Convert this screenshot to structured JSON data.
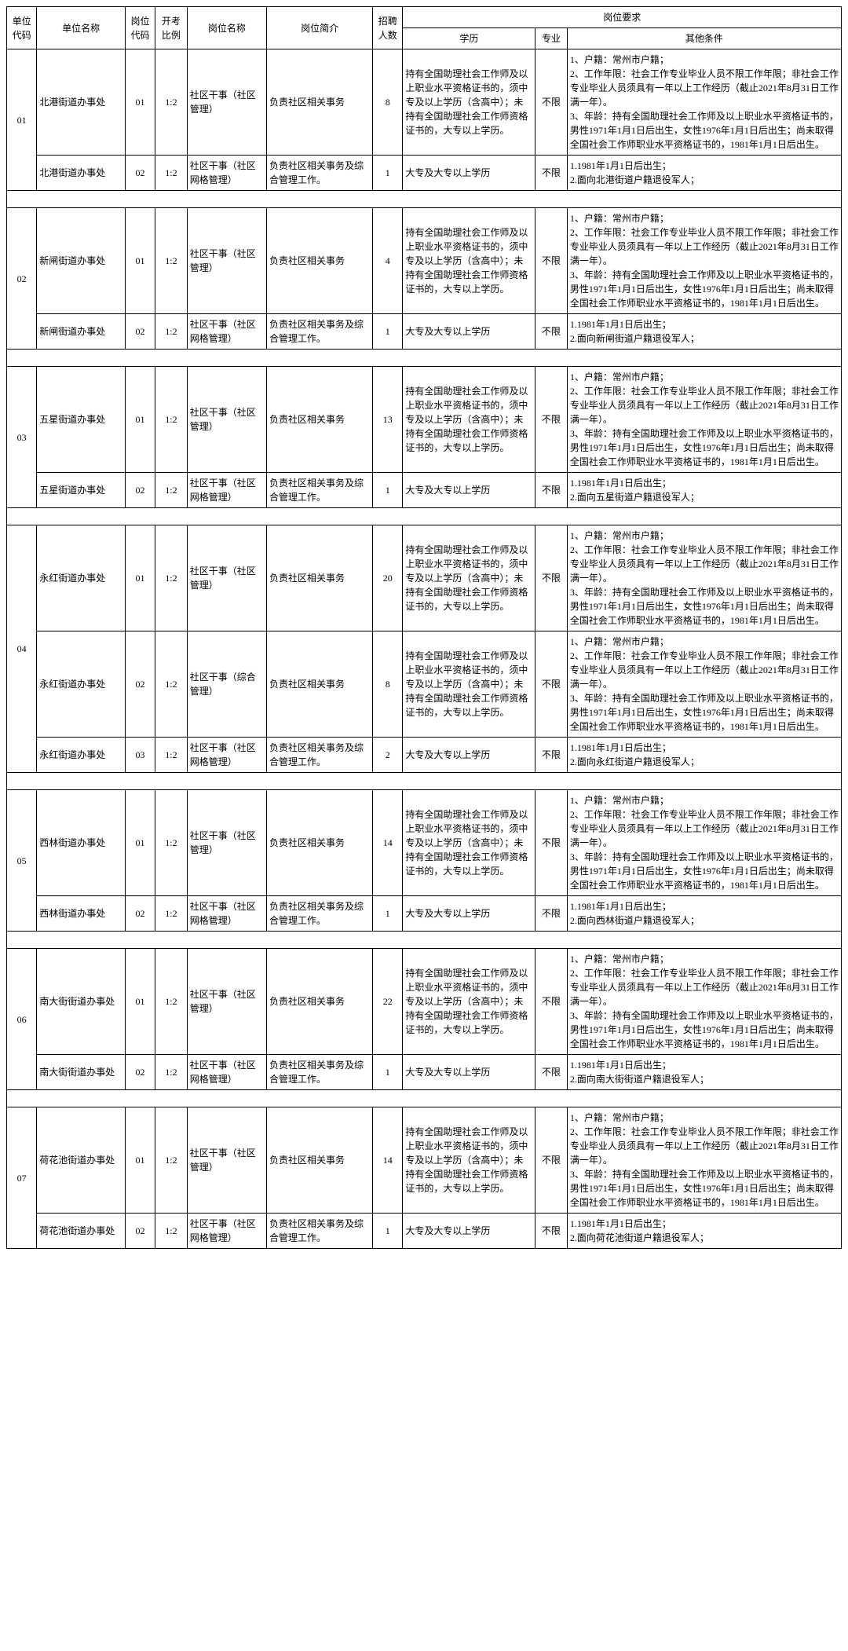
{
  "headers": {
    "unit_code": "单位代码",
    "unit_name": "单位名称",
    "post_code": "岗位代码",
    "ratio": "开考比例",
    "post_name": "岗位名称",
    "post_intro": "岗位简介",
    "count": "招聘人数",
    "req_group": "岗位要求",
    "edu": "学历",
    "major": "专业",
    "other": "其他条件"
  },
  "edu_long": "持有全国助理社会工作师及以上职业水平资格证书的，须中专及以上学历（含高中）；未持有全国助理社会工作师资格证书的，大专以上学历。",
  "edu_short": "大专及大专以上学历",
  "major_val": "不限",
  "other_long": "1、户籍：常州市户籍；\n2、工作年限：社会工作专业毕业人员不限工作年限；非社会工作专业毕业人员须具有一年以上工作经历（截止2021年8月31日工作满一年）。\n3、年龄：持有全国助理社会工作师及以上职业水平资格证书的，男性1971年1月1日后出生，女性1976年1月1日后出生；尚未取得全国社会工作师职业水平资格证书的，1981年1月1日后出生。",
  "groups": [
    {
      "unit_code": "01",
      "rows": [
        {
          "unit_name": "北港街道办事处",
          "post_code": "01",
          "ratio": "1:2",
          "post_name": "社区干事（社区管理）",
          "post_intro": "负责社区相关事务",
          "count": "8",
          "edu_key": "long",
          "other": "long"
        },
        {
          "unit_name": "北港街道办事处",
          "post_code": "02",
          "ratio": "1:2",
          "post_name": "社区干事（社区网格管理）",
          "post_intro": "负责社区相关事务及综合管理工作。",
          "count": "1",
          "edu_key": "short",
          "other": "1.1981年1月1日后出生；\n2.面向北港街道户籍退役军人；"
        }
      ]
    },
    {
      "unit_code": "02",
      "rows": [
        {
          "unit_name": "新闸街道办事处",
          "post_code": "01",
          "ratio": "1:2",
          "post_name": "社区干事（社区管理）",
          "post_intro": "负责社区相关事务",
          "count": "4",
          "edu_key": "long",
          "other": "long"
        },
        {
          "unit_name": "新闸街道办事处",
          "post_code": "02",
          "ratio": "1:2",
          "post_name": "社区干事（社区网格管理）",
          "post_intro": "负责社区相关事务及综合管理工作。",
          "count": "1",
          "edu_key": "short",
          "other": "1.1981年1月1日后出生；\n2.面向新闸街道户籍退役军人；"
        }
      ]
    },
    {
      "unit_code": "03",
      "rows": [
        {
          "unit_name": "五星街道办事处",
          "post_code": "01",
          "ratio": "1:2",
          "post_name": "社区干事（社区管理）",
          "post_intro": "负责社区相关事务",
          "count": "13",
          "edu_key": "long",
          "other": "long"
        },
        {
          "unit_name": "五星街道办事处",
          "post_code": "02",
          "ratio": "1:2",
          "post_name": "社区干事（社区网格管理）",
          "post_intro": "负责社区相关事务及综合管理工作。",
          "count": "1",
          "edu_key": "short",
          "other": "1.1981年1月1日后出生；\n2.面向五星街道户籍退役军人；"
        }
      ]
    },
    {
      "unit_code": "04",
      "rows": [
        {
          "unit_name": "永红街道办事处",
          "post_code": "01",
          "ratio": "1:2",
          "post_name": "社区干事（社区管理）",
          "post_intro": "负责社区相关事务",
          "count": "20",
          "edu_key": "long",
          "other": "long"
        },
        {
          "unit_name": "永红街道办事处",
          "post_code": "02",
          "ratio": "1:2",
          "post_name": "社区干事（综合管理）",
          "post_intro": "负责社区相关事务",
          "count": "8",
          "edu_key": "long",
          "other": "long"
        },
        {
          "unit_name": "永红街道办事处",
          "post_code": "03",
          "ratio": "1:2",
          "post_name": "社区干事（社区网格管理）",
          "post_intro": "负责社区相关事务及综合管理工作。",
          "count": "2",
          "edu_key": "short",
          "other": "1.1981年1月1日后出生；\n2.面向永红街道户籍退役军人；"
        }
      ]
    },
    {
      "unit_code": "05",
      "rows": [
        {
          "unit_name": "西林街道办事处",
          "post_code": "01",
          "ratio": "1:2",
          "post_name": "社区干事（社区管理）",
          "post_intro": "负责社区相关事务",
          "count": "14",
          "edu_key": "long",
          "other": "long"
        },
        {
          "unit_name": "西林街道办事处",
          "post_code": "02",
          "ratio": "1:2",
          "post_name": "社区干事（社区网格管理）",
          "post_intro": "负责社区相关事务及综合管理工作。",
          "count": "1",
          "edu_key": "short",
          "other": "1.1981年1月1日后出生；\n2.面向西林街道户籍退役军人；"
        }
      ]
    },
    {
      "unit_code": "06",
      "rows": [
        {
          "unit_name": "南大街街道办事处",
          "post_code": "01",
          "ratio": "1:2",
          "post_name": "社区干事（社区管理）",
          "post_intro": "负责社区相关事务",
          "count": "22",
          "edu_key": "long",
          "other": "long"
        },
        {
          "unit_name": "南大街街道办事处",
          "post_code": "02",
          "ratio": "1:2",
          "post_name": "社区干事（社区网格管理）",
          "post_intro": "负责社区相关事务及综合管理工作。",
          "count": "1",
          "edu_key": "short",
          "other": "1.1981年1月1日后出生；\n2.面向南大街街道户籍退役军人；"
        }
      ]
    },
    {
      "unit_code": "07",
      "rows": [
        {
          "unit_name": "荷花池街道办事处",
          "post_code": "01",
          "ratio": "1:2",
          "post_name": "社区干事（社区管理）",
          "post_intro": "负责社区相关事务",
          "count": "14",
          "edu_key": "long",
          "other": "long"
        },
        {
          "unit_name": "荷花池街道办事处",
          "post_code": "02",
          "ratio": "1:2",
          "post_name": "社区干事（社区网格管理）",
          "post_intro": "负责社区相关事务及综合管理工作。",
          "count": "1",
          "edu_key": "short",
          "other": "1.1981年1月1日后出生；\n2.面向荷花池街道户籍退役军人；"
        }
      ]
    }
  ]
}
